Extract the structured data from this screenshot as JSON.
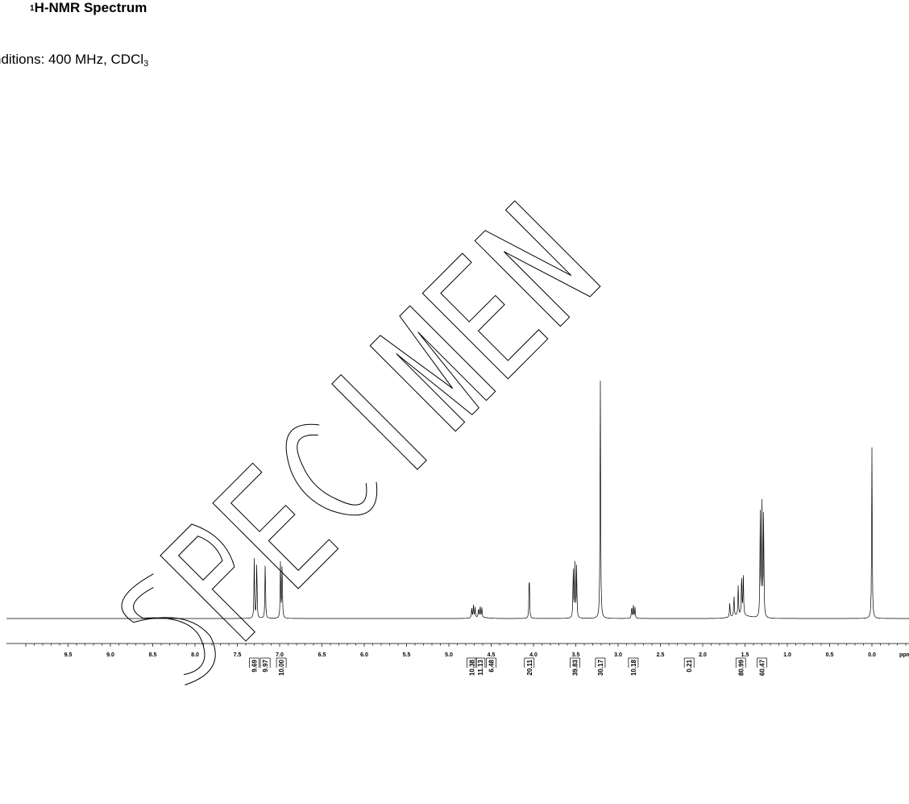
{
  "header": {
    "title_superscript": "1",
    "title_text": "H-NMR Spectrum",
    "conditions_prefix": "nditions: 400 MHz, CDCl",
    "conditions_subscript": "3"
  },
  "watermark": "SPECIMEN",
  "chart_data": {
    "type": "line",
    "title": "1H-NMR Spectrum",
    "xlabel": "ppm",
    "x_unit_label": "ppm",
    "xlim": [
      10.0,
      -0.5
    ],
    "x_reversed": true,
    "ylabel": "",
    "y_axis_shown": false,
    "grid": false,
    "x_ticks": [
      "9.5",
      "9.0",
      "8.5",
      "8.0",
      "7.5",
      "7.0",
      "6.5",
      "6.0",
      "5.5",
      "5.0",
      "4.5",
      "4.0",
      "3.5",
      "3.0",
      "2.5",
      "2.0",
      "1.5",
      "1.0",
      "0.5",
      "0.0"
    ],
    "series": [
      {
        "name": "",
        "peaks": [
          {
            "ppm": 7.3,
            "height": 0.246
          },
          {
            "ppm": 7.27,
            "height": 0.246
          },
          {
            "ppm": 7.17,
            "height": 0.246
          },
          {
            "ppm": 6.99,
            "height": 0.232
          },
          {
            "ppm": 6.97,
            "height": 0.232
          },
          {
            "ppm": 4.73,
            "height": 0.043
          },
          {
            "ppm": 4.71,
            "height": 0.052
          },
          {
            "ppm": 4.69,
            "height": 0.043
          },
          {
            "ppm": 4.65,
            "height": 0.04
          },
          {
            "ppm": 4.63,
            "height": 0.048
          },
          {
            "ppm": 4.61,
            "height": 0.04
          },
          {
            "ppm": 4.05,
            "height": 0.2
          },
          {
            "ppm": 3.53,
            "height": 0.22
          },
          {
            "ppm": 3.51,
            "height": 0.225
          },
          {
            "ppm": 3.49,
            "height": 0.215
          },
          {
            "ppm": 3.21,
            "height": 1.0
          },
          {
            "ppm": 2.84,
            "height": 0.05
          },
          {
            "ppm": 2.82,
            "height": 0.055
          },
          {
            "ppm": 2.8,
            "height": 0.045
          },
          {
            "ppm": 1.68,
            "height": 0.06
          },
          {
            "ppm": 1.63,
            "height": 0.09
          },
          {
            "ppm": 1.58,
            "height": 0.13
          },
          {
            "ppm": 1.54,
            "height": 0.18
          },
          {
            "ppm": 1.52,
            "height": 0.17
          },
          {
            "ppm": 1.32,
            "height": 0.45
          },
          {
            "ppm": 1.3,
            "height": 0.46
          },
          {
            "ppm": 1.28,
            "height": 0.44
          },
          {
            "ppm": 0.0,
            "height": 0.71
          }
        ]
      }
    ],
    "integrals": [
      {
        "ppm": 7.3,
        "value": "9.69"
      },
      {
        "ppm": 7.17,
        "value": "9.97"
      },
      {
        "ppm": 6.98,
        "value": "10.00"
      },
      {
        "ppm": 4.73,
        "value": "10.38"
      },
      {
        "ppm": 4.63,
        "value": "11.13"
      },
      {
        "ppm": 4.5,
        "value": "6.48"
      },
      {
        "ppm": 4.05,
        "value": "20.11"
      },
      {
        "ppm": 3.51,
        "value": "39.83"
      },
      {
        "ppm": 3.21,
        "value": "30.17"
      },
      {
        "ppm": 2.82,
        "value": "10.18"
      },
      {
        "ppm": 2.16,
        "value": "0.21"
      },
      {
        "ppm": 1.55,
        "value": "80.99"
      },
      {
        "ppm": 1.3,
        "value": "60.47"
      }
    ]
  }
}
